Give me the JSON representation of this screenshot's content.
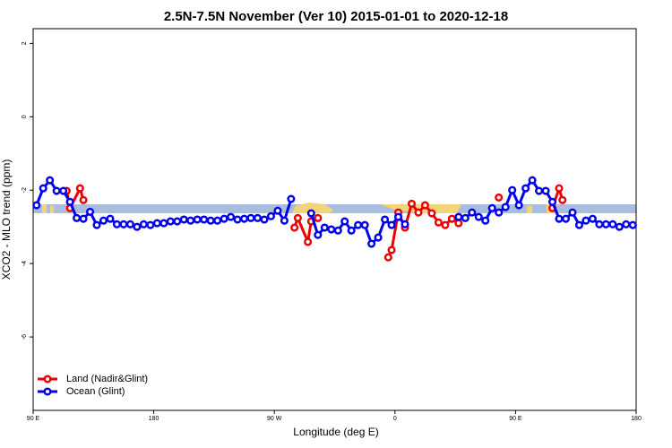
{
  "chart_data": {
    "type": "line",
    "title": "2.5N-7.5N November (Ver 10)   2015-01-01 to 2020-12-18",
    "x_label": "Longitude (deg E)",
    "y_label": "XCO2 - MLO trend (ppm)",
    "xlim": [
      90,
      540
    ],
    "xticks": [
      {
        "value": 90,
        "label": "90 E"
      },
      180,
      {
        "value": 270,
        "label": "90 W"
      },
      {
        "value": 360,
        "label": "0"
      },
      {
        "value": 450,
        "label": "90 E"
      },
      {
        "value": 540,
        "label": "180"
      }
    ],
    "ylim": [
      -8,
      2.4
    ],
    "yticks": [
      2,
      0,
      -2,
      -4,
      -6
    ],
    "legend": "bottom-left",
    "series": [
      {
        "name": "Land (Nadir&Glint)",
        "color": "#ee0000",
        "x": [
          115,
          117.5,
          125,
          127.5,
          130,
          285,
          287.5,
          295,
          297.5,
          302.5,
          340,
          355,
          357.5,
          362.5,
          367.5,
          372.5,
          377.5,
          382.5,
          387.5,
          392.5,
          397.5,
          402.5,
          407.5,
          420,
          437.5,
          460,
          477.5,
          482.5,
          485
        ],
        "values": [
          -2.02,
          -2.49,
          -1.95,
          -2.27,
          null,
          -3.02,
          -2.76,
          -3.41,
          -2.85,
          -2.76,
          null,
          -3.83,
          -3.63,
          -2.61,
          -3.02,
          -2.37,
          -2.61,
          -2.41,
          -2.63,
          -2.88,
          -2.95,
          -2.78,
          -2.9,
          null,
          -2.2,
          null,
          -2.49,
          -1.95,
          -2.27
        ]
      },
      {
        "name": "Ocean (Glint)",
        "color": "#0000ee",
        "x": [
          92.5,
          97.5,
          102.5,
          107.5,
          112.5,
          117.5,
          122.5,
          127.5,
          132.5,
          137.5,
          142.5,
          147.5,
          152.5,
          157.5,
          162.5,
          167.5,
          172.5,
          177.5,
          182.5,
          187.5,
          192.5,
          197.5,
          202.5,
          207.5,
          212.5,
          217.5,
          222.5,
          227.5,
          232.5,
          237.5,
          242.5,
          247.5,
          252.5,
          257.5,
          262.5,
          267.5,
          272.5,
          277.5,
          282.5,
          290,
          297.5,
          302.5,
          307.5,
          312.5,
          317.5,
          322.5,
          327.5,
          332.5,
          337.5,
          342.5,
          347.5,
          352.5,
          357.5,
          362.5,
          367.5,
          385,
          407.5,
          412.5,
          417.5,
          422.5,
          427.5,
          432.5,
          437.5,
          442.5,
          447.5,
          452.5,
          457.5,
          462.5,
          467.5,
          472.5,
          477.5,
          482.5,
          487.5,
          492.5,
          497.5,
          502.5,
          507.5,
          512.5,
          517.5,
          522.5,
          527.5,
          532.5,
          537.5
        ],
        "values": [
          -2.41,
          -1.95,
          -1.73,
          -2.02,
          -2.02,
          -2.32,
          -2.76,
          -2.78,
          -2.59,
          -2.95,
          -2.83,
          -2.78,
          -2.93,
          -2.93,
          -2.93,
          -3.0,
          -2.93,
          -2.95,
          -2.9,
          -2.9,
          -2.85,
          -2.85,
          -2.8,
          -2.83,
          -2.8,
          -2.8,
          -2.83,
          -2.83,
          -2.78,
          -2.73,
          -2.8,
          -2.78,
          -2.76,
          -2.76,
          -2.8,
          -2.71,
          -2.56,
          -2.83,
          -2.24,
          null,
          -2.63,
          -3.22,
          -3.02,
          -3.07,
          -3.1,
          -2.85,
          -3.1,
          -2.95,
          -2.95,
          -3.46,
          -3.29,
          -2.8,
          -2.95,
          -2.73,
          -2.93,
          null,
          -2.73,
          -2.76,
          -2.61,
          -2.73,
          -2.83,
          -2.49,
          -2.61,
          -2.46,
          -2.0,
          -2.41,
          -1.95,
          -1.73,
          -2.02,
          -2.02,
          -2.32,
          -2.78,
          -2.78,
          -2.61,
          -2.95,
          -2.83,
          -2.78,
          -2.93,
          -2.93,
          -2.93,
          -3.0,
          -2.93,
          -2.95
        ]
      }
    ]
  }
}
